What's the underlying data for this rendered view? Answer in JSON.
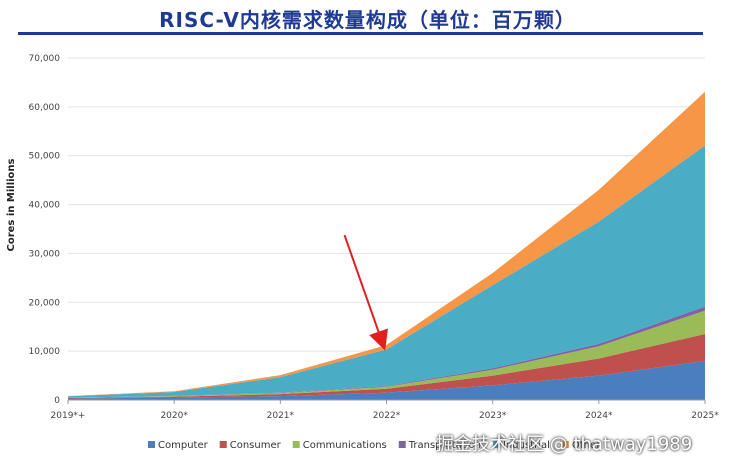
{
  "title": "RISC-V内核需求数量构成（单位：百万颗）",
  "watermark": "掘金技术社区 @ thatway1989",
  "chart_data": {
    "type": "area",
    "stacked": true,
    "ylabel": "Cores in Millions",
    "xlabel": "",
    "ylim": [
      0,
      70000
    ],
    "yticks": [
      0,
      10000,
      20000,
      30000,
      40000,
      50000,
      60000,
      70000
    ],
    "ytick_labels": [
      "0",
      "10,000",
      "20,000",
      "30,000",
      "40,000",
      "50,000",
      "60,000",
      "70,000"
    ],
    "categories": [
      "2019*+",
      "2020*",
      "2021*",
      "2022*",
      "2023*",
      "2024*",
      "2025*"
    ],
    "grid": true,
    "legend_position": "bottom",
    "series": [
      {
        "name": "Computer",
        "color": "#4a7ebf",
        "values": [
          300,
          500,
          800,
          1500,
          3000,
          5000,
          8000
        ]
      },
      {
        "name": "Consumer",
        "color": "#c0504d",
        "values": [
          100,
          200,
          400,
          800,
          2000,
          3500,
          5500
        ]
      },
      {
        "name": "Communications",
        "color": "#9bbb59",
        "values": [
          50,
          100,
          200,
          400,
          1200,
          2500,
          4800
        ]
      },
      {
        "name": "Transportation",
        "color": "#8064a2",
        "values": [
          20,
          40,
          80,
          150,
          300,
          500,
          800
        ]
      },
      {
        "name": "Industrial",
        "color": "#4bacc6",
        "values": [
          300,
          800,
          3200,
          7500,
          17000,
          25000,
          33000
        ]
      },
      {
        "name": "Other",
        "color": "#f79646",
        "values": [
          50,
          150,
          400,
          900,
          2500,
          6500,
          11000
        ]
      }
    ],
    "annotation": {
      "type": "arrow",
      "color": "#e02020",
      "target": "2022*"
    }
  }
}
